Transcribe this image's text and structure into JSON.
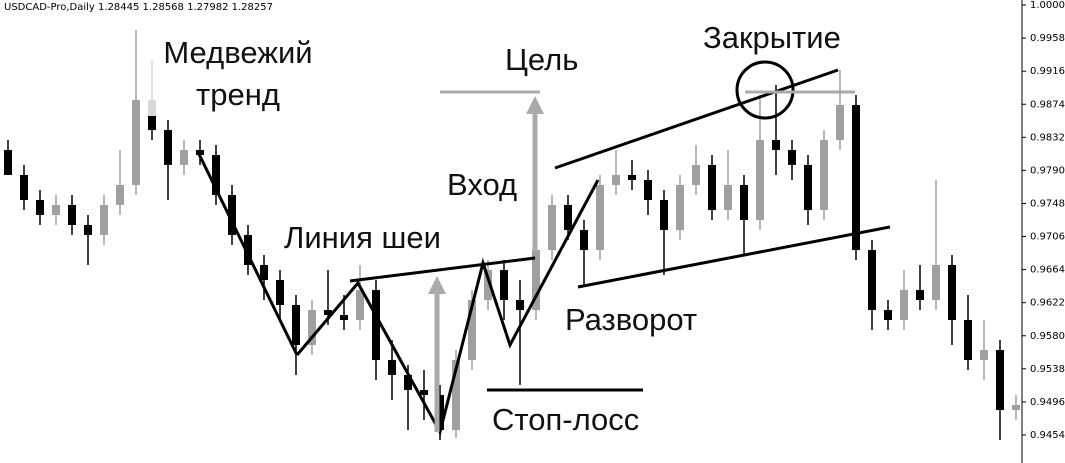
{
  "chart_data": {
    "type": "candlestick",
    "title": "USDCAD-Pro,Daily  1.28445 1.28568 1.27982 1.28257",
    "up_color": "#a0a0a0",
    "down_color": "#000000",
    "ylim": [
      0.94184,
      1.00064
    ],
    "yticks": [
      {
        "value": 1,
        "label": "1.00000"
      },
      {
        "value": 0.9958,
        "label": "0.99580"
      },
      {
        "value": 0.9916,
        "label": "0.99160"
      },
      {
        "value": 0.9874,
        "label": "0.98740"
      },
      {
        "value": 0.9832,
        "label": "0.98320"
      },
      {
        "value": 0.979,
        "label": "0.97900"
      },
      {
        "value": 0.9748,
        "label": "0.97480"
      },
      {
        "value": 0.9706,
        "label": "0.97060"
      },
      {
        "value": 0.9664,
        "label": "0.96640"
      },
      {
        "value": 0.9622,
        "label": "0.96220"
      },
      {
        "value": 0.958,
        "label": "0.95800"
      },
      {
        "value": 0.9538,
        "label": "0.95380"
      },
      {
        "value": 0.9496,
        "label": "0.94960"
      },
      {
        "value": 0.9454,
        "label": "0.94540"
      }
    ],
    "open": [
      0.98159,
      0.97842,
      0.97524,
      0.97334,
      0.97461,
      0.97207,
      0.9708,
      0.97461,
      0.97715,
      0.98794,
      0.98413,
      0.97969,
      0.98159,
      0.98096,
      0.97588,
      0.9708,
      0.96699,
      0.96508,
      0.96191,
      0.95683,
      0.96127,
      0.96064,
      0.96,
      0.96381,
      0.95492,
      0.95302,
      0.95111,
      0.95048,
      0.94603,
      0.95492,
      0.96254,
      0.96635,
      0.96254,
      0.96127,
      0.96889,
      0.97461,
      0.97143,
      0.96889,
      0.97715,
      0.97842,
      0.97778,
      0.97524,
      0.97143,
      0.97715,
      0.97969,
      0.97397,
      0.97715,
      0.9727,
      0.98286,
      0.98159,
      0.97969,
      0.97397,
      0.98286,
      0.98731,
      0.96889,
      0.96127,
      0.96,
      0.96381,
      0.96254,
      0.96699,
      0.96,
      0.95492,
      0.95619,
      0.94857
    ],
    "high": [
      0.98286,
      0.97969,
      0.97651,
      0.97588,
      0.97588,
      0.97334,
      0.97588,
      0.98159,
      0.99683,
      0.99302,
      0.9854,
      0.98286,
      0.98286,
      0.98223,
      0.97715,
      0.97207,
      0.96826,
      0.96635,
      0.96318,
      0.96254,
      0.96635,
      0.96318,
      0.96699,
      0.96508,
      0.95746,
      0.95429,
      0.95365,
      0.95175,
      0.95619,
      0.96381,
      0.96762,
      0.96762,
      0.96508,
      0.97016,
      0.97588,
      0.97588,
      0.9727,
      0.97842,
      0.98159,
      0.98032,
      0.97905,
      0.97651,
      0.97842,
      0.98223,
      0.98096,
      0.98159,
      0.97842,
      0.98858,
      0.98985,
      0.98286,
      0.98096,
      0.98413,
      0.99175,
      0.98858,
      0.97016,
      0.96254,
      0.96635,
      0.96699,
      0.97778,
      0.96826,
      0.96318,
      0.96,
      0.95746,
      0.95048
    ],
    "low": [
      0.97842,
      0.97397,
      0.97207,
      0.97207,
      0.9708,
      0.96699,
      0.96953,
      0.97334,
      0.97588,
      0.98286,
      0.97524,
      0.97842,
      0.97969,
      0.97461,
      0.96953,
      0.96572,
      0.96254,
      0.96,
      0.95302,
      0.95556,
      0.95937,
      0.95873,
      0.95873,
      0.95238,
      0.94984,
      0.94603,
      0.9473,
      0.94476,
      0.94501,
      0.95365,
      0.96127,
      0.96,
      0.95175,
      0.96,
      0.96762,
      0.97016,
      0.96445,
      0.96762,
      0.97588,
      0.97651,
      0.97334,
      0.96572,
      0.97016,
      0.97588,
      0.9727,
      0.9727,
      0.96826,
      0.97143,
      0.97842,
      0.97778,
      0.97207,
      0.9727,
      0.98159,
      0.96762,
      0.95873,
      0.95873,
      0.95873,
      0.96127,
      0.96127,
      0.95683,
      0.95365,
      0.95238,
      0.94476,
      0.9473
    ],
    "close": [
      0.97842,
      0.97524,
      0.97334,
      0.97461,
      0.97207,
      0.9708,
      0.97461,
      0.97715,
      0.98794,
      0.98413,
      0.97969,
      0.98159,
      0.98096,
      0.97588,
      0.9708,
      0.96699,
      0.96508,
      0.96191,
      0.95683,
      0.96127,
      0.96064,
      0.96,
      0.96381,
      0.95492,
      0.95302,
      0.95111,
      0.95048,
      0.94603,
      0.95492,
      0.96254,
      0.96635,
      0.96254,
      0.96127,
      0.96889,
      0.97461,
      0.97143,
      0.96889,
      0.97715,
      0.97842,
      0.97778,
      0.97524,
      0.97143,
      0.97715,
      0.97969,
      0.97397,
      0.97715,
      0.9727,
      0.98286,
      0.98159,
      0.97969,
      0.97397,
      0.98286,
      0.98731,
      0.96889,
      0.96127,
      0.96,
      0.96381,
      0.96254,
      0.96699,
      0.96,
      0.95492,
      0.95619,
      0.94857,
      0.94921
    ],
    "annotations": [
      {
        "text": "Медвежий тренд"
      },
      {
        "text": "Линия шеи"
      },
      {
        "text": "Цель"
      },
      {
        "text": "Вход"
      },
      {
        "text": "Закрытие"
      },
      {
        "text": "Разворот"
      },
      {
        "text": "Стоп-лосс"
      }
    ]
  }
}
